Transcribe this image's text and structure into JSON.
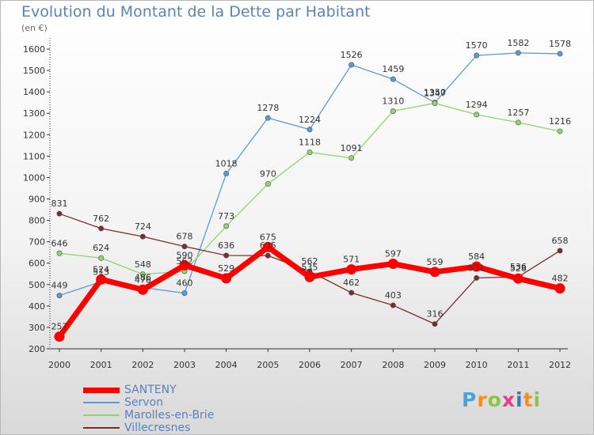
{
  "chart_data": {
    "type": "line",
    "title": "Evolution du Montant de la Dette par Habitant",
    "subtitle": "(en €)",
    "x": [
      "2000",
      "2001",
      "2002",
      "2003",
      "2004",
      "2005",
      "2006",
      "2007",
      "2008",
      "2009",
      "2010",
      "2011",
      "2012"
    ],
    "yticks": [
      200,
      300,
      400,
      500,
      600,
      700,
      800,
      900,
      1000,
      1100,
      1200,
      1300,
      1400,
      1500,
      1600
    ],
    "ylim": [
      200,
      1650
    ],
    "grid": false,
    "legend_position": "bottom-left",
    "series": [
      {
        "name": "SANTENY",
        "color": "#ff0000",
        "values": [
          257,
          524,
          476,
          590,
          529,
          675,
          535,
          571,
          597,
          559,
          584,
          528,
          482
        ]
      },
      {
        "name": "Servon",
        "color": "#5b9bd5",
        "values": [
          449,
          513,
          486,
          460,
          1018,
          1278,
          1224,
          1526,
          1459,
          1350,
          1570,
          1582,
          1578
        ]
      },
      {
        "name": "Marolles-en-Brie",
        "color": "#92d36e",
        "values": [
          646,
          624,
          548,
          562,
          773,
          970,
          1118,
          1091,
          1310,
          1347,
          1294,
          1257,
          1216
        ]
      },
      {
        "name": "Villecresnes",
        "color": "#7b2c2c",
        "values": [
          831,
          762,
          724,
          678,
          636,
          635,
          562,
          462,
          403,
          316,
          531,
          536,
          658
        ]
      }
    ]
  },
  "logo": {
    "letters": [
      "P",
      "r",
      "o",
      "x",
      "i",
      "t",
      "i"
    ],
    "colors": [
      "#4aa3df",
      "#ff8c1a",
      "#8cc63f",
      "#e83e8c",
      "#2e7cc4",
      "#ff8c1a",
      "#8cc63f"
    ]
  }
}
